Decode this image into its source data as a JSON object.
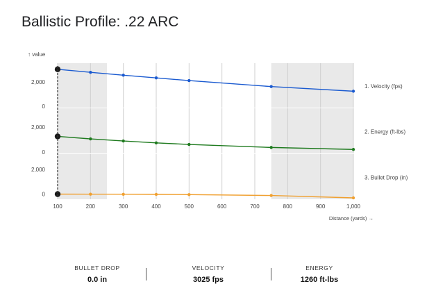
{
  "title": "Ballistic Profile: .22 ARC",
  "chart_data": {
    "type": "line",
    "y_axis_label": "↑ value",
    "x_axis_label": "Distance (yards) →",
    "x_ticks": [
      "100",
      "200",
      "300",
      "400",
      "500",
      "600",
      "700",
      "800",
      "900",
      "1,000"
    ],
    "x_range": [
      100,
      1000
    ],
    "shaded_x_ranges": [
      [
        100,
        250
      ],
      [
        750,
        1000
      ]
    ],
    "grid": true,
    "panels": [
      {
        "name": "1. Velocity (fps)",
        "color": "#1a5ad0",
        "y_ticks": [
          {
            "value": 0,
            "label": "0"
          },
          {
            "value": 2000,
            "label": "2,000"
          }
        ],
        "ylim": [
          0,
          3300
        ],
        "points": [
          [
            100,
            3025
          ],
          [
            200,
            2780
          ],
          [
            300,
            2540
          ],
          [
            400,
            2320
          ],
          [
            500,
            2100
          ],
          [
            750,
            1610
          ],
          [
            1000,
            1230
          ]
        ]
      },
      {
        "name": "2. Energy (ft-lbs)",
        "color": "#1e7a1e",
        "y_ticks": [
          {
            "value": 0,
            "label": "0"
          },
          {
            "value": 2000,
            "label": "2,000"
          }
        ],
        "ylim": [
          0,
          3300
        ],
        "points": [
          [
            100,
            1260
          ],
          [
            200,
            1060
          ],
          [
            300,
            890
          ],
          [
            400,
            740
          ],
          [
            500,
            610
          ],
          [
            750,
            370
          ],
          [
            1000,
            210
          ]
        ]
      },
      {
        "name": "3. Bullet Drop (in)",
        "color": "#f0a030",
        "y_ticks": [
          {
            "value": 0,
            "label": "0"
          },
          {
            "value": 2000,
            "label": "2,000"
          }
        ],
        "ylim": [
          -300,
          3000
        ],
        "points": [
          [
            100,
            0.0
          ],
          [
            200,
            -2
          ],
          [
            300,
            -8
          ],
          [
            400,
            -20
          ],
          [
            500,
            -38
          ],
          [
            750,
            -110
          ],
          [
            1000,
            -300
          ]
        ]
      }
    ],
    "highlight_x": 100
  },
  "stats": [
    {
      "label": "BULLET DROP",
      "value": "0.0 in"
    },
    {
      "label": "VELOCITY",
      "value": "3025 fps"
    },
    {
      "label": "ENERGY",
      "value": "1260 ft-lbs"
    }
  ]
}
